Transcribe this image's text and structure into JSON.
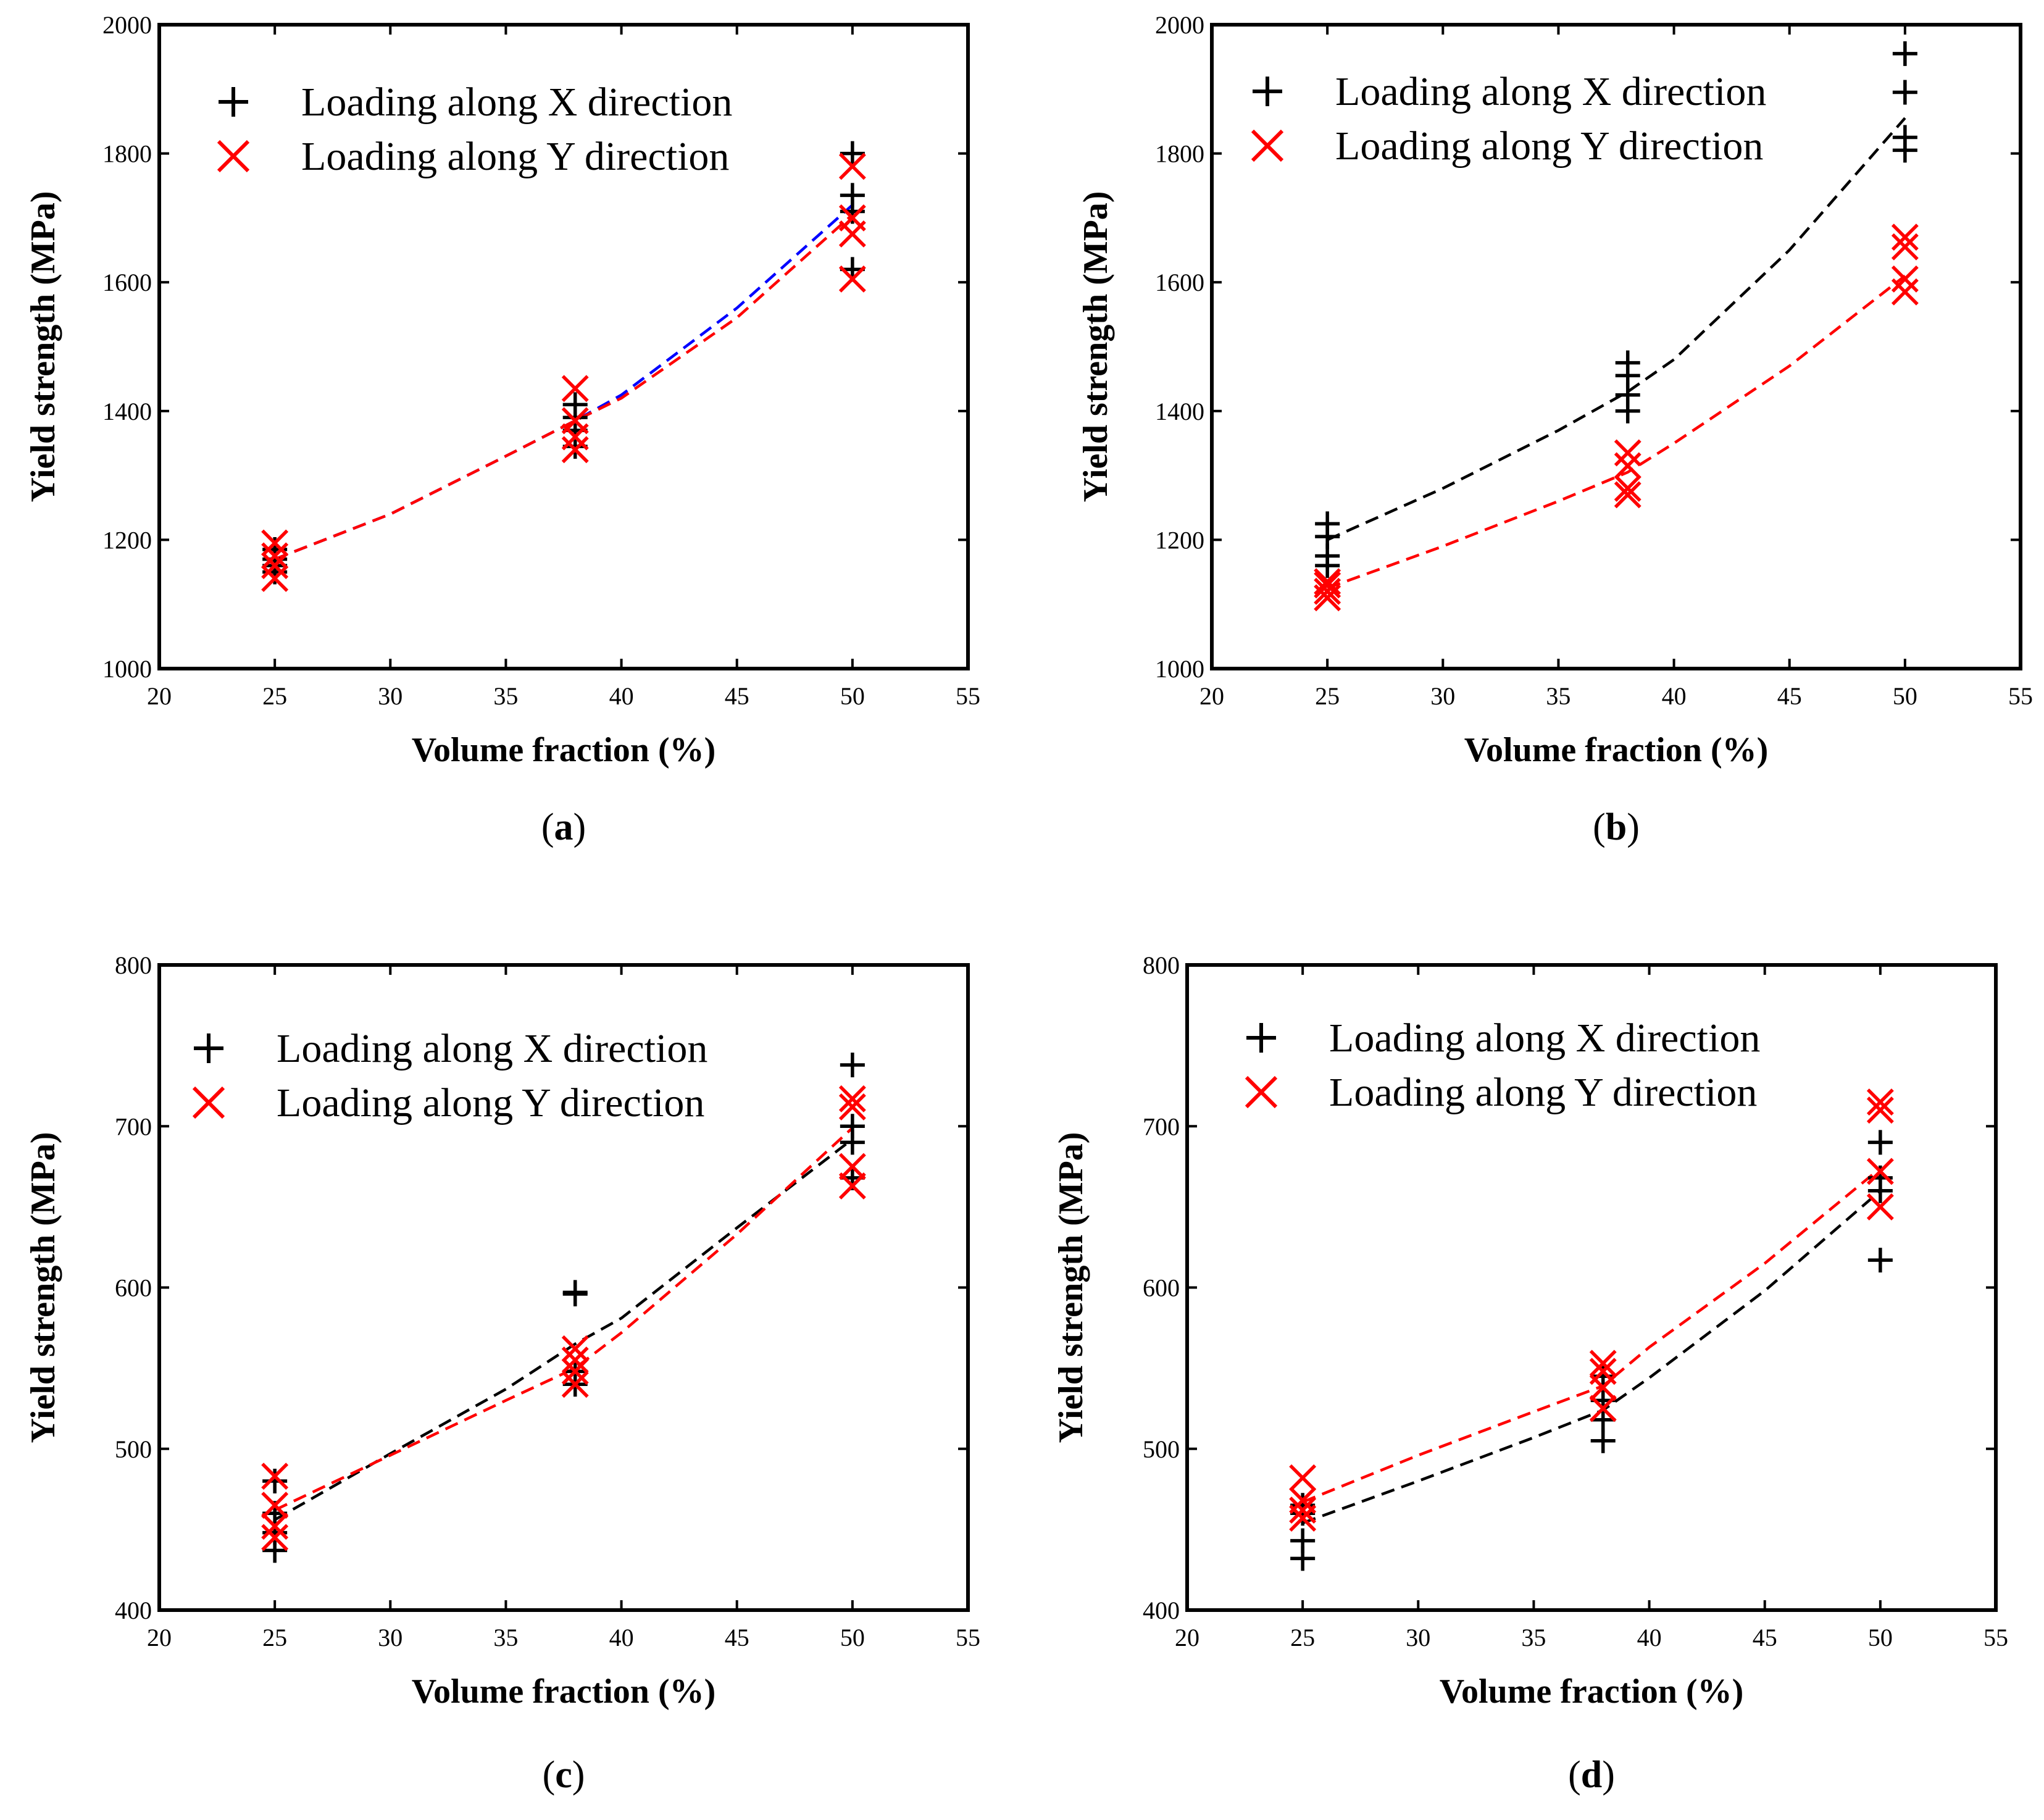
{
  "chart_data": [
    {
      "panel_label": "a",
      "type": "scatter",
      "xlabel": "Volume fraction (%)",
      "ylabel": "Yield strength (MPa)",
      "xlim": [
        20,
        55
      ],
      "ylim": [
        1000,
        2000
      ],
      "xticks": [
        20,
        25,
        30,
        35,
        40,
        45,
        50,
        55
      ],
      "yticks": [
        1000,
        1200,
        1400,
        1600,
        1800,
        2000
      ],
      "legend_position": "top-left",
      "series": [
        {
          "name": "Loading along X direction",
          "marker": "plus",
          "color": "#000000",
          "points": [
            [
              25,
              1150
            ],
            [
              25,
              1160
            ],
            [
              25,
              1170
            ],
            [
              25,
              1185
            ],
            [
              38,
              1345
            ],
            [
              38,
              1370
            ],
            [
              38,
              1390
            ],
            [
              38,
              1410
            ],
            [
              50,
              1620
            ],
            [
              50,
              1710
            ],
            [
              50,
              1735
            ],
            [
              50,
              1800
            ]
          ]
        },
        {
          "name": "Loading along Y direction",
          "marker": "x",
          "color": "#ff0000",
          "points": [
            [
              25,
              1140
            ],
            [
              25,
              1160
            ],
            [
              25,
              1175
            ],
            [
              25,
              1195
            ],
            [
              38,
              1340
            ],
            [
              38,
              1360
            ],
            [
              38,
              1385
            ],
            [
              38,
              1435
            ],
            [
              50,
              1605
            ],
            [
              50,
              1675
            ],
            [
              50,
              1700
            ],
            [
              50,
              1780
            ]
          ]
        }
      ],
      "trend_lines": [
        {
          "name": "X fit",
          "color": "#0000ff",
          "x": [
            25,
            30,
            35,
            38,
            40,
            45,
            50
          ],
          "y": [
            1170,
            1240,
            1330,
            1385,
            1425,
            1560,
            1720
          ]
        },
        {
          "name": "Y fit",
          "color": "#ff0000",
          "x": [
            25,
            30,
            35,
            38,
            40,
            45,
            50
          ],
          "y": [
            1170,
            1240,
            1330,
            1385,
            1420,
            1545,
            1705
          ]
        }
      ]
    },
    {
      "panel_label": "b",
      "type": "scatter",
      "xlabel": "Volume fraction (%)",
      "ylabel": "Yield strength (MPa)",
      "xlim": [
        20,
        55
      ],
      "ylim": [
        1000,
        2000
      ],
      "xticks": [
        20,
        25,
        30,
        35,
        40,
        45,
        50,
        55
      ],
      "yticks": [
        1000,
        1200,
        1400,
        1600,
        1800,
        2000
      ],
      "legend_position": "top-left",
      "series": [
        {
          "name": "Loading along X direction",
          "marker": "plus",
          "color": "#000000",
          "points": [
            [
              25,
              1160
            ],
            [
              25,
              1175
            ],
            [
              25,
              1205
            ],
            [
              25,
              1225
            ],
            [
              38,
              1400
            ],
            [
              38,
              1425
            ],
            [
              38,
              1455
            ],
            [
              38,
              1475
            ],
            [
              50,
              1805
            ],
            [
              50,
              1825
            ],
            [
              50,
              1895
            ],
            [
              50,
              1955
            ]
          ]
        },
        {
          "name": "Loading along Y direction",
          "marker": "x",
          "color": "#ff0000",
          "points": [
            [
              25,
              1110
            ],
            [
              25,
              1120
            ],
            [
              25,
              1130
            ],
            [
              25,
              1135
            ],
            [
              38,
              1270
            ],
            [
              38,
              1280
            ],
            [
              38,
              1315
            ],
            [
              38,
              1335
            ],
            [
              50,
              1585
            ],
            [
              50,
              1605
            ],
            [
              50,
              1655
            ],
            [
              50,
              1670
            ]
          ]
        }
      ],
      "trend_lines": [
        {
          "name": "X fit",
          "color": "#000000",
          "x": [
            25,
            30,
            35,
            38,
            40,
            45,
            50
          ],
          "y": [
            1200,
            1280,
            1370,
            1430,
            1480,
            1650,
            1855
          ]
        },
        {
          "name": "Y fit",
          "color": "#ff0000",
          "x": [
            25,
            30,
            35,
            38,
            40,
            45,
            50
          ],
          "y": [
            1125,
            1190,
            1260,
            1305,
            1350,
            1470,
            1610
          ]
        }
      ]
    },
    {
      "panel_label": "c",
      "type": "scatter",
      "xlabel": "Volume fraction (%)",
      "ylabel": "Yield strength (MPa)",
      "xlim": [
        20,
        55
      ],
      "ylim": [
        400,
        800
      ],
      "xticks": [
        20,
        25,
        30,
        35,
        40,
        45,
        50,
        55
      ],
      "yticks": [
        400,
        500,
        600,
        700,
        800
      ],
      "legend_position": "top-left",
      "series": [
        {
          "name": "Loading along X direction",
          "marker": "plus",
          "color": "#000000",
          "points": [
            [
              25,
              437
            ],
            [
              25,
              448
            ],
            [
              25,
              460
            ],
            [
              25,
              480
            ],
            [
              38,
              540
            ],
            [
              38,
              548
            ],
            [
              38,
              596
            ],
            [
              38,
              597
            ],
            [
              50,
              668
            ],
            [
              50,
              690
            ],
            [
              50,
              700
            ],
            [
              50,
              738
            ]
          ]
        },
        {
          "name": "Loading along Y direction",
          "marker": "x",
          "color": "#ff0000",
          "points": [
            [
              25,
              445
            ],
            [
              25,
              452
            ],
            [
              25,
              465
            ],
            [
              25,
              483
            ],
            [
              38,
              540
            ],
            [
              38,
              548
            ],
            [
              38,
              555
            ],
            [
              38,
              562
            ],
            [
              50,
              663
            ],
            [
              50,
              675
            ],
            [
              50,
              712
            ],
            [
              50,
              717
            ]
          ]
        }
      ],
      "trend_lines": [
        {
          "name": "X fit",
          "color": "#000000",
          "x": [
            25,
            30,
            35,
            38,
            40,
            45,
            50
          ],
          "y": [
            456,
            497,
            537,
            565,
            581,
            637,
            692
          ]
        },
        {
          "name": "Y fit",
          "color": "#ff0000",
          "x": [
            25,
            30,
            35,
            38,
            40,
            45,
            50
          ],
          "y": [
            462,
            496,
            530,
            550,
            572,
            633,
            699
          ]
        }
      ]
    },
    {
      "panel_label": "d",
      "type": "scatter",
      "xlabel": "Volume fraction (%)",
      "ylabel": "Yield strength (MPa)",
      "xlim": [
        20,
        55
      ],
      "ylim": [
        400,
        800
      ],
      "xticks": [
        20,
        25,
        30,
        35,
        40,
        45,
        50,
        55
      ],
      "yticks": [
        400,
        500,
        600,
        700,
        800
      ],
      "legend_position": "top-left",
      "series": [
        {
          "name": "Loading along X direction",
          "marker": "plus",
          "color": "#000000",
          "points": [
            [
              25,
              432
            ],
            [
              25,
              443
            ],
            [
              25,
              460
            ],
            [
              25,
              465
            ],
            [
              38,
              505
            ],
            [
              38,
              518
            ],
            [
              38,
              530
            ],
            [
              38,
              545
            ],
            [
              50,
              617
            ],
            [
              50,
              660
            ],
            [
              50,
              668
            ],
            [
              50,
              690
            ]
          ]
        },
        {
          "name": "Loading along Y direction",
          "marker": "x",
          "color": "#ff0000",
          "points": [
            [
              25,
              457
            ],
            [
              25,
              462
            ],
            [
              25,
              468
            ],
            [
              25,
              482
            ],
            [
              38,
              525
            ],
            [
              38,
              538
            ],
            [
              38,
              548
            ],
            [
              38,
              553
            ],
            [
              50,
              650
            ],
            [
              50,
              672
            ],
            [
              50,
              710
            ],
            [
              50,
              715
            ]
          ]
        }
      ],
      "trend_lines": [
        {
          "name": "X fit",
          "color": "#000000",
          "x": [
            25,
            30,
            35,
            38,
            40,
            45,
            50
          ],
          "y": [
            454,
            480,
            507,
            524,
            544,
            598,
            660
          ]
        },
        {
          "name": "Y fit",
          "color": "#ff0000",
          "x": [
            25,
            30,
            35,
            38,
            40,
            45,
            50
          ],
          "y": [
            467,
            496,
            523,
            539,
            563,
            615,
            674
          ]
        }
      ]
    }
  ]
}
